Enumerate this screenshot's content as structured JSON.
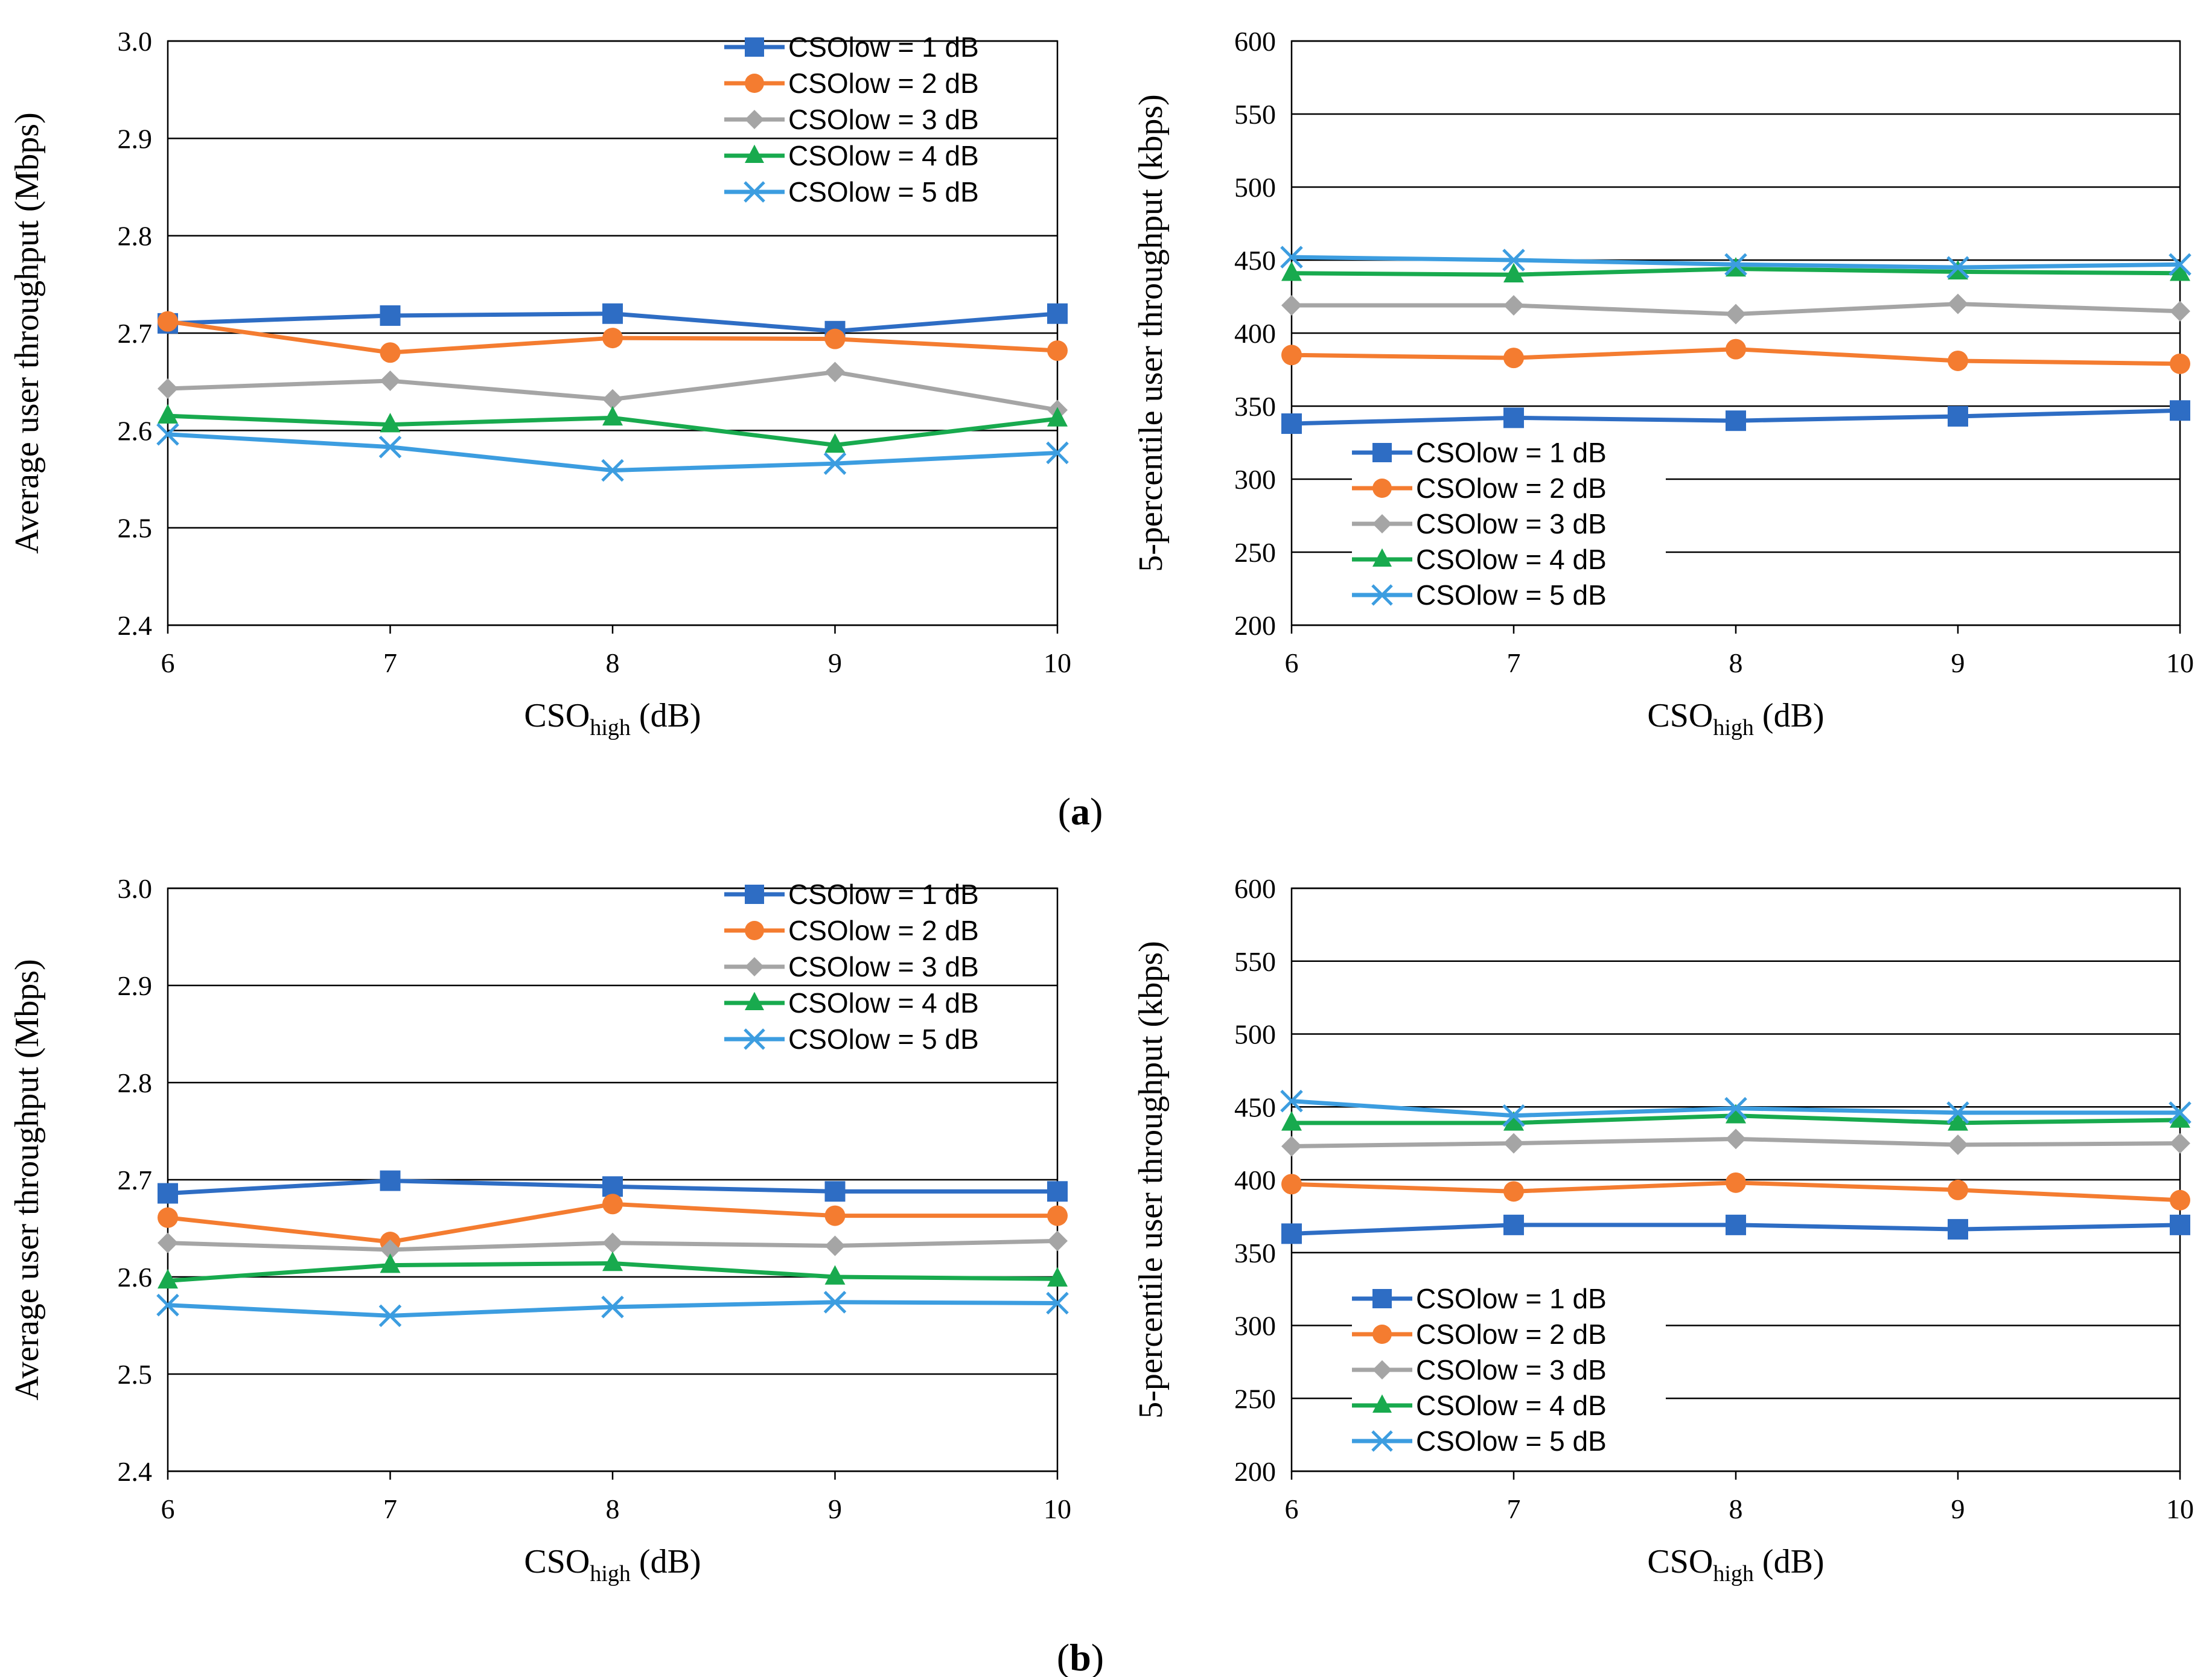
{
  "colors": {
    "CSOlow = 1 dB": "#2E6DC4",
    "CSOlow = 2 dB": "#F47C30",
    "CSOlow = 3 dB": "#A5A5A5",
    "CSOlow = 4 dB": "#18AA4E",
    "CSOlow = 5 dB": "#3C9DE0"
  },
  "panels": [
    {
      "label_open": "(",
      "label_letter": "a",
      "label_close": ")"
    },
    {
      "label_open": "(",
      "label_letter": "b",
      "label_close": ")"
    }
  ],
  "chart_data": [
    {
      "type": "line",
      "panel": "a",
      "legend_position": "top-right",
      "x": [
        6,
        7,
        8,
        9,
        10
      ],
      "xlabel_main": "CSO",
      "xlabel_sub": "high",
      "xlabel_unit": "(dB)",
      "ylabel": "Average user throughput (Mbps)",
      "ylim": [
        2.4,
        3.0
      ],
      "yticks": [
        "2.4",
        "2.5",
        "2.6",
        "2.7",
        "2.8",
        "2.9",
        "3.0"
      ],
      "grid": true,
      "series": [
        {
          "name": "CSOlow = 1 dB",
          "marker": "square",
          "values": [
            2.71,
            2.718,
            2.72,
            2.702,
            2.72
          ]
        },
        {
          "name": "CSOlow = 2 dB",
          "marker": "circle",
          "values": [
            2.712,
            2.68,
            2.695,
            2.694,
            2.682
          ]
        },
        {
          "name": "CSOlow = 3 dB",
          "marker": "diamond",
          "values": [
            2.643,
            2.651,
            2.632,
            2.66,
            2.621
          ]
        },
        {
          "name": "CSOlow = 4 dB",
          "marker": "triangle",
          "values": [
            2.615,
            2.606,
            2.613,
            2.585,
            2.612
          ]
        },
        {
          "name": "CSOlow = 5 dB",
          "marker": "x",
          "values": [
            2.596,
            2.583,
            2.559,
            2.566,
            2.577
          ]
        }
      ]
    },
    {
      "type": "line",
      "panel": "a",
      "legend_position": "bottom-left",
      "x": [
        6,
        7,
        8,
        9,
        10
      ],
      "xlabel_main": "CSO",
      "xlabel_sub": "high",
      "xlabel_unit": "(dB)",
      "ylabel": "5-percentile  user throughput (kbps)",
      "ylim": [
        200,
        600
      ],
      "yticks": [
        "200",
        "250",
        "300",
        "350",
        "400",
        "450",
        "500",
        "550",
        "600"
      ],
      "grid": true,
      "series": [
        {
          "name": "CSOlow = 1 dB",
          "marker": "square",
          "values": [
            338,
            342,
            340,
            343,
            347
          ]
        },
        {
          "name": "CSOlow = 2 dB",
          "marker": "circle",
          "values": [
            385,
            383,
            389,
            381,
            379
          ]
        },
        {
          "name": "CSOlow = 3 dB",
          "marker": "diamond",
          "values": [
            419,
            419,
            413,
            420,
            415
          ]
        },
        {
          "name": "CSOlow = 4 dB",
          "marker": "triangle",
          "values": [
            441,
            440,
            444,
            442,
            441
          ]
        },
        {
          "name": "CSOlow = 5 dB",
          "marker": "x",
          "values": [
            452,
            450,
            447,
            445,
            447
          ]
        }
      ]
    },
    {
      "type": "line",
      "panel": "b",
      "legend_position": "top-right",
      "x": [
        6,
        7,
        8,
        9,
        10
      ],
      "xlabel_main": "CSO",
      "xlabel_sub": "high",
      "xlabel_unit": "(dB)",
      "ylabel": "Average user throughput (Mbps)",
      "ylim": [
        2.4,
        3.0
      ],
      "yticks": [
        "2.4",
        "2.5",
        "2.6",
        "2.7",
        "2.8",
        "2.9",
        "3.0"
      ],
      "grid": true,
      "series": [
        {
          "name": "CSOlow = 1 dB",
          "marker": "square",
          "values": [
            2.686,
            2.699,
            2.693,
            2.688,
            2.688
          ]
        },
        {
          "name": "CSOlow = 2 dB",
          "marker": "circle",
          "values": [
            2.661,
            2.636,
            2.675,
            2.663,
            2.663
          ]
        },
        {
          "name": "CSOlow = 3 dB",
          "marker": "diamond",
          "values": [
            2.635,
            2.628,
            2.635,
            2.632,
            2.637
          ]
        },
        {
          "name": "CSOlow = 4 dB",
          "marker": "triangle",
          "values": [
            2.596,
            2.612,
            2.614,
            2.6,
            2.598
          ]
        },
        {
          "name": "CSOlow = 5 dB",
          "marker": "x",
          "values": [
            2.571,
            2.56,
            2.569,
            2.574,
            2.573
          ]
        }
      ]
    },
    {
      "type": "line",
      "panel": "b",
      "legend_position": "bottom-left",
      "x": [
        6,
        7,
        8,
        9,
        10
      ],
      "xlabel_main": "CSO",
      "xlabel_sub": "high",
      "xlabel_unit": "(dB)",
      "ylabel": "5-percentile  user throughput (kbps)",
      "ylim": [
        200,
        600
      ],
      "yticks": [
        "200",
        "250",
        "300",
        "350",
        "400",
        "450",
        "500",
        "550",
        "600"
      ],
      "grid": true,
      "series": [
        {
          "name": "CSOlow = 1 dB",
          "marker": "square",
          "values": [
            363,
            369,
            369,
            366,
            369
          ]
        },
        {
          "name": "CSOlow = 2 dB",
          "marker": "circle",
          "values": [
            397,
            392,
            398,
            393,
            386
          ]
        },
        {
          "name": "CSOlow = 3 dB",
          "marker": "diamond",
          "values": [
            423,
            425,
            428,
            424,
            425
          ]
        },
        {
          "name": "CSOlow = 4 dB",
          "marker": "triangle",
          "values": [
            439,
            439,
            444,
            439,
            441
          ]
        },
        {
          "name": "CSOlow = 5 dB",
          "marker": "x",
          "values": [
            454,
            444,
            449,
            446,
            446
          ]
        }
      ]
    }
  ]
}
